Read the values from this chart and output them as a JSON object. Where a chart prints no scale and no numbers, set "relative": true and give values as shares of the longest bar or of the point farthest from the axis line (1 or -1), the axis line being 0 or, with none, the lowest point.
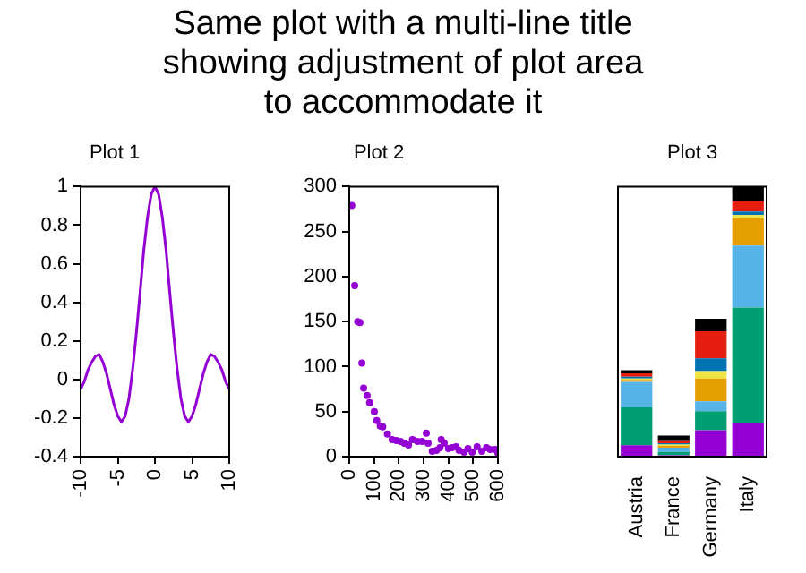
{
  "chart_data": [
    {
      "type": "other",
      "title": "Same plot with a multi-line title\nshowing adjustment of plot area\nto accommodate it"
    },
    {
      "type": "line",
      "title": "Plot 1",
      "marker": "none",
      "line_style": "solid",
      "grid": false,
      "legend": false,
      "x": [
        -10,
        -9.5,
        -9,
        -8.5,
        -8,
        -7.5,
        -7,
        -6.5,
        -6,
        -5.5,
        -5,
        -4.5,
        -4,
        -3.5,
        -3,
        -2.5,
        -2,
        -1.5,
        -1,
        -0.5,
        0,
        0.5,
        1,
        1.5,
        2,
        2.5,
        3,
        3.5,
        4,
        4.5,
        5,
        5.5,
        6,
        6.5,
        7,
        7.5,
        8,
        8.5,
        9,
        9.5,
        10
      ],
      "series": [
        {
          "color": "#9400d3",
          "values": [
            -0.05,
            -0.01,
            0.05,
            0.09,
            0.12,
            0.13,
            0.09,
            0.03,
            -0.05,
            -0.13,
            -0.19,
            -0.22,
            -0.19,
            -0.1,
            0.05,
            0.24,
            0.45,
            0.67,
            0.84,
            0.96,
            1,
            0.96,
            0.84,
            0.67,
            0.45,
            0.24,
            0.05,
            -0.1,
            -0.19,
            -0.22,
            -0.19,
            -0.13,
            -0.05,
            0.03,
            0.09,
            0.13,
            0.12,
            0.09,
            0.05,
            -0.01,
            -0.05
          ]
        }
      ],
      "xlim": [
        -10,
        10
      ],
      "xticks": [
        -10,
        -5,
        0,
        5,
        10
      ],
      "ylim": [
        -0.4,
        1
      ],
      "yticks": [
        -0.4,
        -0.2,
        0,
        0.2,
        0.4,
        0.6,
        0.8,
        1
      ]
    },
    {
      "type": "scatter",
      "title": "Plot 2",
      "marker": "circle",
      "grid": false,
      "legend": false,
      "x": [
        10,
        22,
        34,
        43,
        51,
        58,
        72,
        82,
        101,
        111,
        125,
        135,
        154,
        173,
        190,
        207,
        222,
        239,
        255,
        275,
        294,
        311,
        318,
        335,
        352,
        366,
        371,
        383,
        400,
        414,
        431,
        443,
        463,
        479,
        496,
        516,
        535,
        554,
        569,
        588,
        600
      ],
      "series": [
        {
          "color": "#9400d3",
          "values": [
            279,
            190,
            150,
            149,
            104,
            76,
            68,
            60,
            50,
            40,
            34,
            33,
            25,
            19,
            18,
            17,
            15,
            13,
            19,
            17,
            17,
            26,
            15,
            6,
            7,
            10,
            19,
            15,
            9,
            10,
            11,
            7,
            5,
            9,
            5,
            11,
            6,
            10,
            8,
            8,
            4
          ]
        }
      ],
      "xlim": [
        0,
        600
      ],
      "xticks": [
        0,
        100,
        200,
        300,
        400,
        500,
        600
      ],
      "ylim": [
        0,
        300
      ],
      "yticks": [
        0,
        50,
        100,
        150,
        200,
        250,
        300
      ]
    },
    {
      "type": "bar",
      "title": "Plot 3",
      "stacked": true,
      "relative": true,
      "grid": false,
      "legend": false,
      "categories": [
        "Austria",
        "France",
        "Germany",
        "Italy"
      ],
      "series": [
        {
          "color": "#9400d3",
          "values": [
            0.042,
            0.005,
            0.098,
            0.126
          ]
        },
        {
          "color": "#009e73",
          "values": [
            0.14,
            0.012,
            0.07,
            0.426
          ]
        },
        {
          "color": "#56b4e9",
          "values": [
            0.095,
            0.016,
            0.037,
            0.23
          ]
        },
        {
          "color": "#e69f00",
          "values": [
            0.007,
            0.007,
            0.084,
            0.1
          ]
        },
        {
          "color": "#f0e442",
          "values": [
            0.005,
            0.005,
            0.028,
            0.012
          ]
        },
        {
          "color": "#0072b2",
          "values": [
            0.007,
            0.005,
            0.047,
            0.014
          ]
        },
        {
          "color": "#e51e10",
          "values": [
            0.012,
            0.007,
            0.1,
            0.037
          ]
        },
        {
          "color": "#000000",
          "values": [
            0.012,
            0.021,
            0.047,
            0.055
          ]
        }
      ]
    }
  ]
}
